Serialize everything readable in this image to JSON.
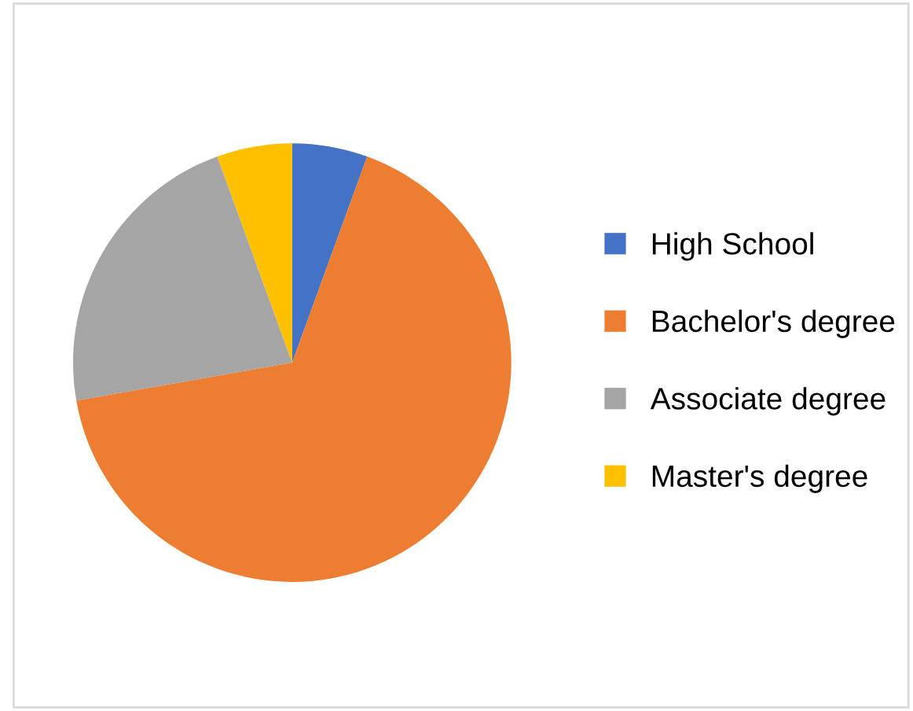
{
  "chart_data": {
    "type": "pie",
    "categories": [
      "High School",
      "Bachelor's degree",
      "Associate degree",
      "Master's degree"
    ],
    "values": [
      5.56,
      66.67,
      22.22,
      5.55
    ],
    "colors": [
      "#4472c4",
      "#ed7d31",
      "#a5a5a5",
      "#ffc000"
    ],
    "legend": "right"
  }
}
